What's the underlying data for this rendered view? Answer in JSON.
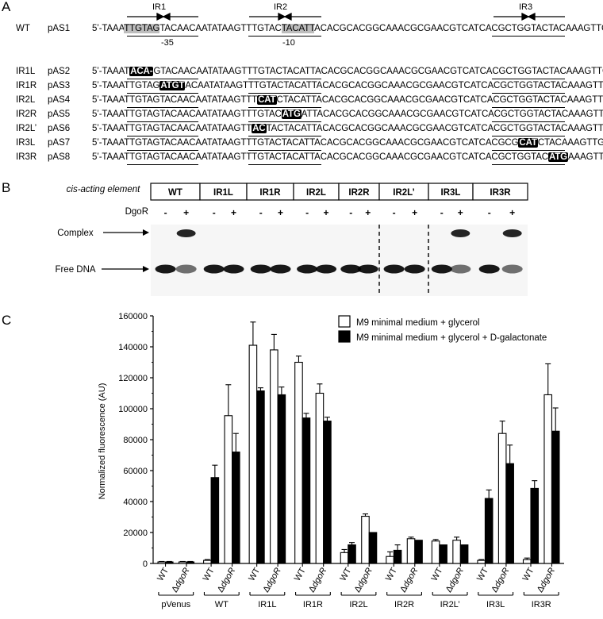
{
  "panels": {
    "a": "A",
    "b": "B",
    "c": "C"
  },
  "panel_a": {
    "ir_labels": [
      "IR1",
      "IR2",
      "IR3"
    ],
    "box_labels": [
      "-35",
      "-10"
    ],
    "rows": [
      {
        "name": "WT",
        "plasmid": "pAS1",
        "segments": [
          {
            "t": "5’-TAAA"
          },
          {
            "t": "TTGTAG",
            "c": "box"
          },
          {
            "t": "TACAACAATATAAGTTTGTAC"
          },
          {
            "t": "TACATT",
            "c": "box"
          },
          {
            "t": "ACACGCACGGCAAACGCGAACGTCATCACGCTGGTACTACAAAGTTG-3’"
          }
        ]
      },
      {
        "name": "IR1L",
        "plasmid": "pAS2",
        "segments": [
          {
            "t": "5’-TAAAT"
          },
          {
            "t": "ACA-",
            "c": "mut"
          },
          {
            "t": "GTACAACAATATAAGTTTGTACTACATTACACGCACGGCAAACGCGAACGTCATCACGCTGGTACTACAAAGTTG-3’"
          }
        ]
      },
      {
        "name": "IR1R",
        "plasmid": "pAS3",
        "segments": [
          {
            "t": "5’-TAAATTGTAG"
          },
          {
            "t": "ATGT",
            "c": "mut"
          },
          {
            "t": "ACAATATAAGTTTGTACTACATTACACGCACGGCAAACGCGAACGTCATCACGCTGGTACTACAAAGTTG-3’"
          }
        ]
      },
      {
        "name": "IR2L",
        "plasmid": "pAS4",
        "segments": [
          {
            "t": "5’-TAAATTGTAGTACAACAATATAAGTTT"
          },
          {
            "t": "CAT",
            "c": "mut"
          },
          {
            "t": "CTACATTACACGCACGGCAAACGCGAACGTCATCACGCTGGTACTACAAAGTTG-3’"
          }
        ]
      },
      {
        "name": "IR2R",
        "plasmid": "pAS5",
        "segments": [
          {
            "t": "5’-TAAATTGTAGTACAACAATATAAGTTTGTAC"
          },
          {
            "t": "ATG",
            "c": "mut"
          },
          {
            "t": "ATTACACGCACGGCAAACGCGAACGTCATCACGCTGGTACTACAAAGTTG-3’"
          }
        ]
      },
      {
        "name": "IR2L’",
        "plasmid": "pAS6",
        "segments": [
          {
            "t": "5’-TAAATTGTAGTACAACAATATAAGTT"
          },
          {
            "t": "AC",
            "c": "mut"
          },
          {
            "t": "TACTACATTACACGCACGGCAAACGCGAACGTCATCACGCTGGTACTACAAAGTTG-3’"
          }
        ]
      },
      {
        "name": "IR3L",
        "plasmid": "pAS7",
        "segments": [
          {
            "t": "5’-TAAATTGTAGTACAACAATATAAGTTTGTACTACATTACACGCACGGCAAACGCGAACGTCATCACGCG"
          },
          {
            "t": "CAT",
            "c": "mut"
          },
          {
            "t": "CTACAAAGTTG-3’"
          }
        ]
      },
      {
        "name": "IR3R",
        "plasmid": "pAS8",
        "segments": [
          {
            "t": "5’-TAAATTGTAGTACAACAATATAAGTTTGTACTACATTACACGCACGGCAAACGCGAACGTCATCACGCTGGTAC"
          },
          {
            "t": "ATG",
            "c": "mut"
          },
          {
            "t": "AAAGTTG-3’"
          }
        ]
      }
    ]
  },
  "panel_b": {
    "element_label": "cis-acting element",
    "protein_label": "DgoR",
    "lanes": [
      "WT",
      "IR1L",
      "IR1R",
      "IR2L",
      "IR2R",
      "IR2L’",
      "IR3L",
      "IR3R"
    ],
    "minus": "-",
    "plus": "+",
    "complex_label": "Complex",
    "free_label": "Free DNA",
    "complex_formed": [
      true,
      false,
      false,
      false,
      false,
      false,
      true,
      true
    ]
  },
  "chart_data": {
    "type": "bar",
    "ylabel": "Normalized fluorescence (AU)",
    "ylim": [
      0,
      160000
    ],
    "yticks": [
      "0",
      "20000",
      "40000",
      "60000",
      "80000",
      "100000",
      "120000",
      "140000",
      "160000"
    ],
    "groups": [
      "pVenus",
      "WT",
      "IR1L",
      "IR1R",
      "IR2L",
      "IR2R",
      "IR2L’",
      "IR3L",
      "IR3R"
    ],
    "strains": [
      "WT",
      "ΔdgoR"
    ],
    "series": [
      {
        "name": "M9 minimal medium + glycerol",
        "color": "#ffffff",
        "values": [
          [
            1000,
            1000
          ],
          [
            2000,
            95500
          ],
          [
            141000,
            138000
          ],
          [
            130000,
            110000
          ],
          [
            7000,
            30500
          ],
          [
            4500,
            16000
          ],
          [
            14500,
            15000
          ],
          [
            2000,
            84000
          ],
          [
            2500,
            109000
          ]
        ],
        "errors": [
          [
            300,
            300
          ],
          [
            500,
            20000
          ],
          [
            15000,
            10000
          ],
          [
            4000,
            6000
          ],
          [
            2000,
            1500
          ],
          [
            3000,
            1000
          ],
          [
            1000,
            2000
          ],
          [
            500,
            8000
          ],
          [
            1000,
            20000
          ]
        ]
      },
      {
        "name": "M9 minimal medium + glycerol + D-galactonate",
        "color": "#000000",
        "values": [
          [
            1000,
            1000
          ],
          [
            55500,
            72000
          ],
          [
            111500,
            109000
          ],
          [
            94000,
            92000
          ],
          [
            12000,
            20000
          ],
          [
            8500,
            15000
          ],
          [
            12000,
            12000
          ],
          [
            42000,
            64500
          ],
          [
            48500,
            85500
          ]
        ],
        "errors": [
          [
            300,
            300
          ],
          [
            8000,
            12000
          ],
          [
            2000,
            5000
          ],
          [
            3000,
            2500
          ],
          [
            1500,
            0
          ],
          [
            3500,
            0
          ],
          [
            0,
            0
          ],
          [
            5500,
            12000
          ],
          [
            5000,
            15000
          ]
        ]
      }
    ]
  }
}
